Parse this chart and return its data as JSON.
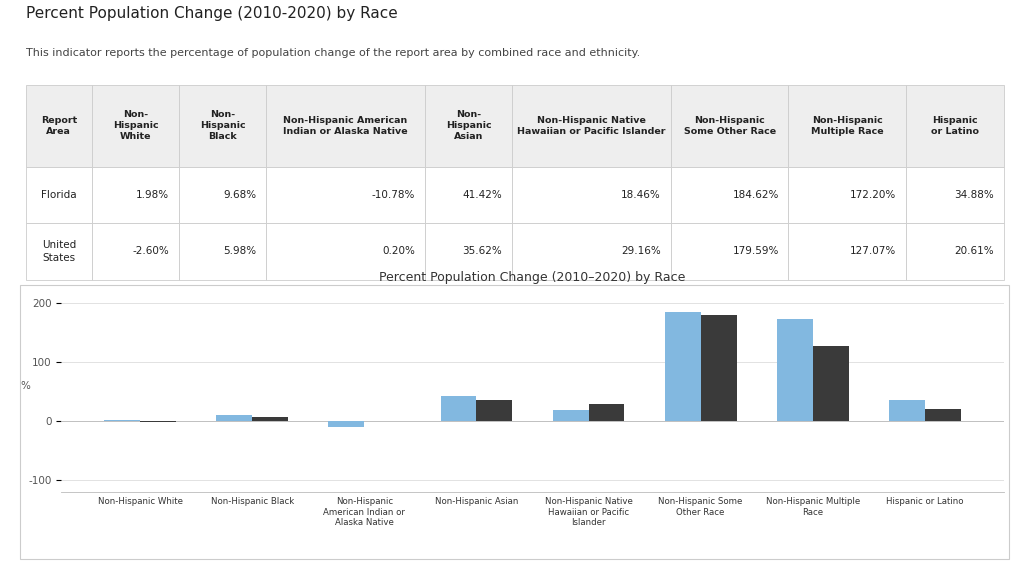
{
  "title": "Percent Population Change (2010–2020) by Race",
  "page_title": "Percent Population Change (2010-2020) by Race",
  "subtitle": "This indicator reports the percentage of population change of the report area by combined race and ethnicity.",
  "categories": [
    "Non-Hispanic White",
    "Non-Hispanic Black",
    "Non-Hispanic\nAmerican Indian or\nAlaska Native",
    "Non-Hispanic Asian",
    "Non-Hispanic Native\nHawaiian or Pacific\nIslander",
    "Non-Hispanic Some\nOther Race",
    "Non-Hispanic Multiple\nRace",
    "Hispanic or Latino"
  ],
  "florida_values": [
    1.98,
    9.68,
    -10.78,
    41.42,
    18.46,
    184.62,
    172.2,
    34.88
  ],
  "us_values": [
    -2.6,
    5.98,
    0.2,
    35.62,
    29.16,
    179.59,
    127.07,
    20.61
  ],
  "florida_color": "#82B8E0",
  "us_color": "#3A3A3A",
  "background_color": "#FFFFFF",
  "chart_background": "#FFFFFF",
  "grid_color": "#DDDDDD",
  "table_header_bg": "#EEEEEE",
  "table_border_color": "#CCCCCC",
  "table_row1_bg": "#FFFFFF",
  "table_row2_bg": "#FFFFFF",
  "table_header_cols": [
    "Report\nArea",
    "Non-\nHispanic\nWhite",
    "Non-\nHispanic\nBlack",
    "Non-Hispanic American\nIndian or Alaska Native",
    "Non-\nHispanic\nAsian",
    "Non-Hispanic Native\nHawaiian or Pacific Islander",
    "Non-Hispanic\nSome Other Race",
    "Non-Hispanic\nMultiple Race",
    "Hispanic\nor Latino"
  ],
  "florida_row": [
    "Florida",
    "1.98%",
    "9.68%",
    "-10.78%",
    "41.42%",
    "18.46%",
    "184.62%",
    "172.20%",
    "34.88%"
  ],
  "us_row": [
    "United\nStates",
    "-2.60%",
    "5.98%",
    "0.20%",
    "35.62%",
    "29.16%",
    "179.59%",
    "127.07%",
    "20.61%"
  ],
  "col_widths": [
    0.065,
    0.085,
    0.085,
    0.155,
    0.085,
    0.155,
    0.115,
    0.115,
    0.095
  ],
  "ylim": [
    -120,
    220
  ],
  "yticks": [
    -100,
    0,
    100,
    200
  ],
  "ylabel": "%"
}
